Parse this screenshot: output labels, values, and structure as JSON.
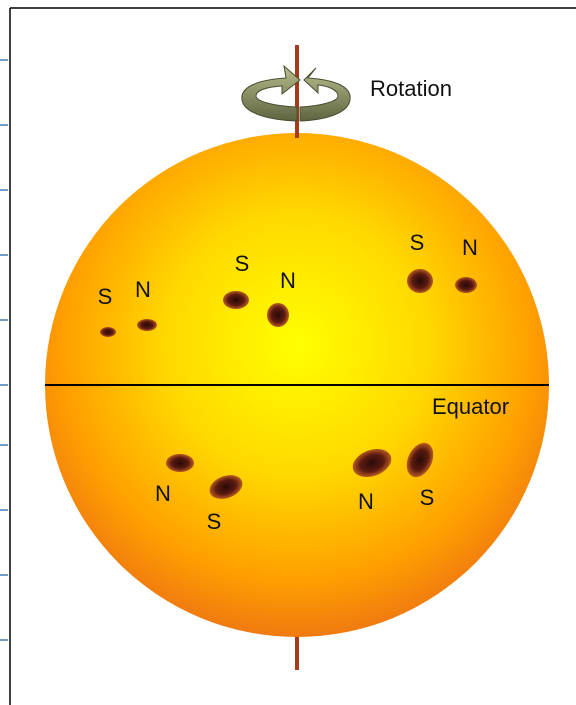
{
  "rotation_label": "Rotation",
  "equator_label": "Equator",
  "spot_labels": [
    "S",
    "N",
    "S",
    "N",
    "S",
    "N",
    "N",
    "S",
    "N",
    "S"
  ]
}
